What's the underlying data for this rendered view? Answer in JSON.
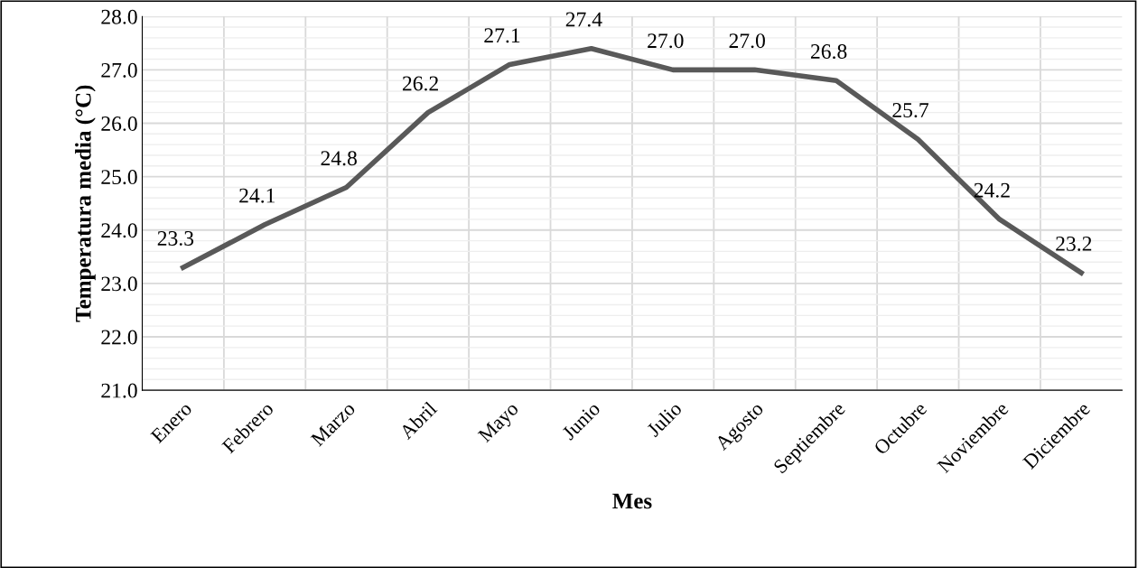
{
  "chart_data": {
    "type": "line",
    "xlabel": "Mes",
    "ylabel": "Temperatura media (°C)",
    "categories": [
      "Enero",
      "Febrero",
      "Marzo",
      "Abril",
      "Mayo",
      "Junio",
      "Julio",
      "Agosto",
      "Septiembre",
      "Octubre",
      "Noviembre",
      "Diciembre"
    ],
    "series": [
      {
        "color": "#595959",
        "values": [
          23.3,
          24.1,
          24.8,
          26.2,
          27.1,
          27.4,
          27.0,
          27.0,
          26.8,
          25.7,
          24.2,
          23.2
        ],
        "value_labels": [
          "23.3",
          "24.1",
          "24.8",
          "26.2",
          "27.1",
          "27.4",
          "27.0",
          "27.0",
          "26.8",
          "25.7",
          "24.2",
          "23.2"
        ]
      }
    ],
    "ylim": [
      21,
      28
    ],
    "yticks": [
      {
        "value": 21,
        "label": "21.0"
      },
      {
        "value": 22,
        "label": "22.0"
      },
      {
        "value": 23,
        "label": "23.0"
      },
      {
        "value": 24,
        "label": "24.0"
      },
      {
        "value": 25,
        "label": "25.0"
      },
      {
        "value": 26,
        "label": "26.0"
      },
      {
        "value": 27,
        "label": "27.0"
      },
      {
        "value": 28,
        "label": "28.0"
      }
    ],
    "grid": true,
    "legend": false,
    "marker": "none",
    "line_style": "solid"
  }
}
